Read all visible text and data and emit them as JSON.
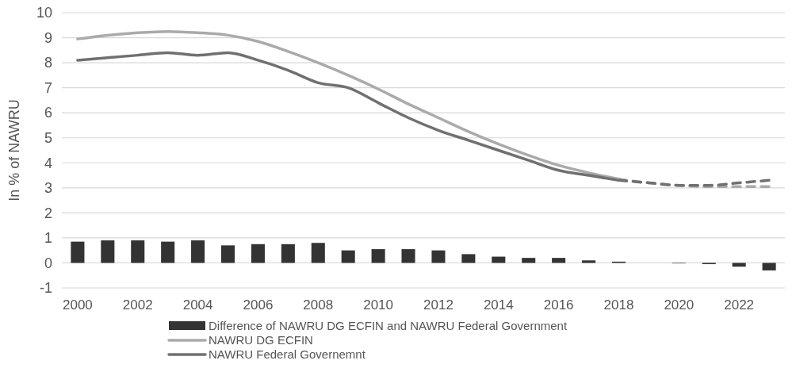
{
  "chart_data": {
    "type": "bar",
    "ylabel": "In % of NAWRU",
    "categories": [
      "2000",
      null,
      "2002",
      null,
      "2004",
      null,
      "2006",
      null,
      "2008",
      null,
      "2010",
      null,
      "2012",
      null,
      "2014",
      null,
      "2016",
      null,
      "2018",
      null,
      "2020",
      null,
      "2022",
      null
    ],
    "series": [
      {
        "name": "Difference of NAWRU DG ECFIN and NAWRU Federal Government",
        "color": "#333333",
        "values": [
          0.85,
          0.9,
          0.9,
          0.85,
          0.9,
          0.7,
          0.75,
          0.75,
          0.8,
          0.5,
          0.55,
          0.55,
          0.5,
          0.35,
          0.25,
          0.2,
          0.2,
          0.1,
          0.05,
          null,
          -0.02,
          -0.05,
          -0.15,
          -0.3
        ]
      },
      {
        "name": "NAWRU DG ECFIN",
        "type": "line",
        "color": "#aaaaaa",
        "line_style": "solid",
        "values": [
          8.95,
          9.1,
          9.2,
          9.25,
          9.2,
          9.1,
          8.85,
          8.45,
          8.0,
          7.5,
          6.95,
          6.35,
          5.8,
          5.25,
          4.75,
          4.3,
          3.9,
          3.6,
          3.35,
          null,
          null,
          null,
          null,
          null
        ]
      },
      {
        "name": "NAWRU Federal Governemnt",
        "type": "line",
        "color": "#707070",
        "line_style": "solid",
        "values": [
          8.1,
          8.2,
          8.3,
          8.4,
          8.3,
          8.4,
          8.1,
          7.7,
          7.2,
          7.0,
          6.4,
          5.8,
          5.3,
          4.9,
          4.5,
          4.1,
          3.7,
          3.5,
          3.3,
          null,
          null,
          null,
          null,
          null
        ]
      },
      {
        "type": "line",
        "color": "#aaaaaa",
        "line_style": "dashed",
        "values": [
          null,
          null,
          null,
          null,
          null,
          null,
          null,
          null,
          null,
          null,
          null,
          null,
          null,
          null,
          null,
          null,
          null,
          null,
          3.35,
          3.2,
          3.1,
          3.05,
          3.05,
          3.05
        ]
      },
      {
        "type": "line",
        "color": "#707070",
        "line_style": "dashed",
        "values": [
          null,
          null,
          null,
          null,
          null,
          null,
          null,
          null,
          null,
          null,
          null,
          null,
          null,
          null,
          null,
          null,
          null,
          null,
          3.3,
          3.2,
          3.1,
          3.1,
          3.2,
          3.3
        ]
      }
    ],
    "ylim": [
      -1,
      10
    ],
    "yticks": [
      -1,
      0,
      1,
      2,
      3,
      4,
      5,
      6,
      7,
      8,
      9,
      10
    ],
    "grid": "y",
    "legend": "bottom"
  }
}
